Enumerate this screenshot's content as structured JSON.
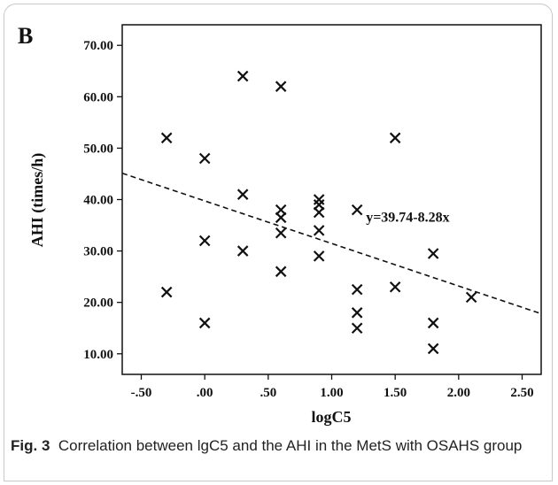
{
  "panel_label": "B",
  "caption": {
    "label": "Fig. 3",
    "text": "Correlation between lgC5 and the AHI in the MetS with OSAHS group"
  },
  "chart_data": {
    "type": "scatter",
    "title": "",
    "xlabel": "logC5",
    "ylabel": "AHI (times/h)",
    "xlim": [
      -0.65,
      2.65
    ],
    "ylim": [
      6,
      74
    ],
    "x_ticks": [
      -0.5,
      0,
      0.5,
      1,
      1.5,
      2,
      2.5
    ],
    "x_tick_labels": [
      "-.50",
      ".00",
      ".50",
      "1.00",
      "1.50",
      "2.00",
      "2.50"
    ],
    "y_ticks": [
      10,
      20,
      30,
      40,
      50,
      60,
      70
    ],
    "y_tick_labels": [
      "10.00",
      "20.00",
      "30.00",
      "40.00",
      "50.00",
      "60.00",
      "70.00"
    ],
    "grid": false,
    "marker": "x",
    "marker_color": "#111111",
    "points": [
      {
        "x": -0.3,
        "y": 52
      },
      {
        "x": -0.3,
        "y": 22
      },
      {
        "x": 0.0,
        "y": 48
      },
      {
        "x": 0.0,
        "y": 32
      },
      {
        "x": 0.0,
        "y": 16
      },
      {
        "x": 0.3,
        "y": 64
      },
      {
        "x": 0.3,
        "y": 41
      },
      {
        "x": 0.3,
        "y": 30
      },
      {
        "x": 0.6,
        "y": 62
      },
      {
        "x": 0.6,
        "y": 38
      },
      {
        "x": 0.6,
        "y": 36.5
      },
      {
        "x": 0.6,
        "y": 33.5
      },
      {
        "x": 0.6,
        "y": 26
      },
      {
        "x": 0.9,
        "y": 40
      },
      {
        "x": 0.9,
        "y": 39
      },
      {
        "x": 0.9,
        "y": 37.5
      },
      {
        "x": 0.9,
        "y": 34
      },
      {
        "x": 0.9,
        "y": 29
      },
      {
        "x": 1.2,
        "y": 38
      },
      {
        "x": 1.2,
        "y": 22.5
      },
      {
        "x": 1.2,
        "y": 18
      },
      {
        "x": 1.2,
        "y": 15
      },
      {
        "x": 1.5,
        "y": 52
      },
      {
        "x": 1.5,
        "y": 23
      },
      {
        "x": 1.8,
        "y": 29.5
      },
      {
        "x": 1.8,
        "y": 16
      },
      {
        "x": 1.8,
        "y": 11
      },
      {
        "x": 2.1,
        "y": 21
      }
    ],
    "fit_line": {
      "intercept": 39.74,
      "slope": -8.28,
      "label": "y=39.74-8.28x",
      "label_at": {
        "x": 1.27,
        "y": 36.6
      }
    }
  }
}
